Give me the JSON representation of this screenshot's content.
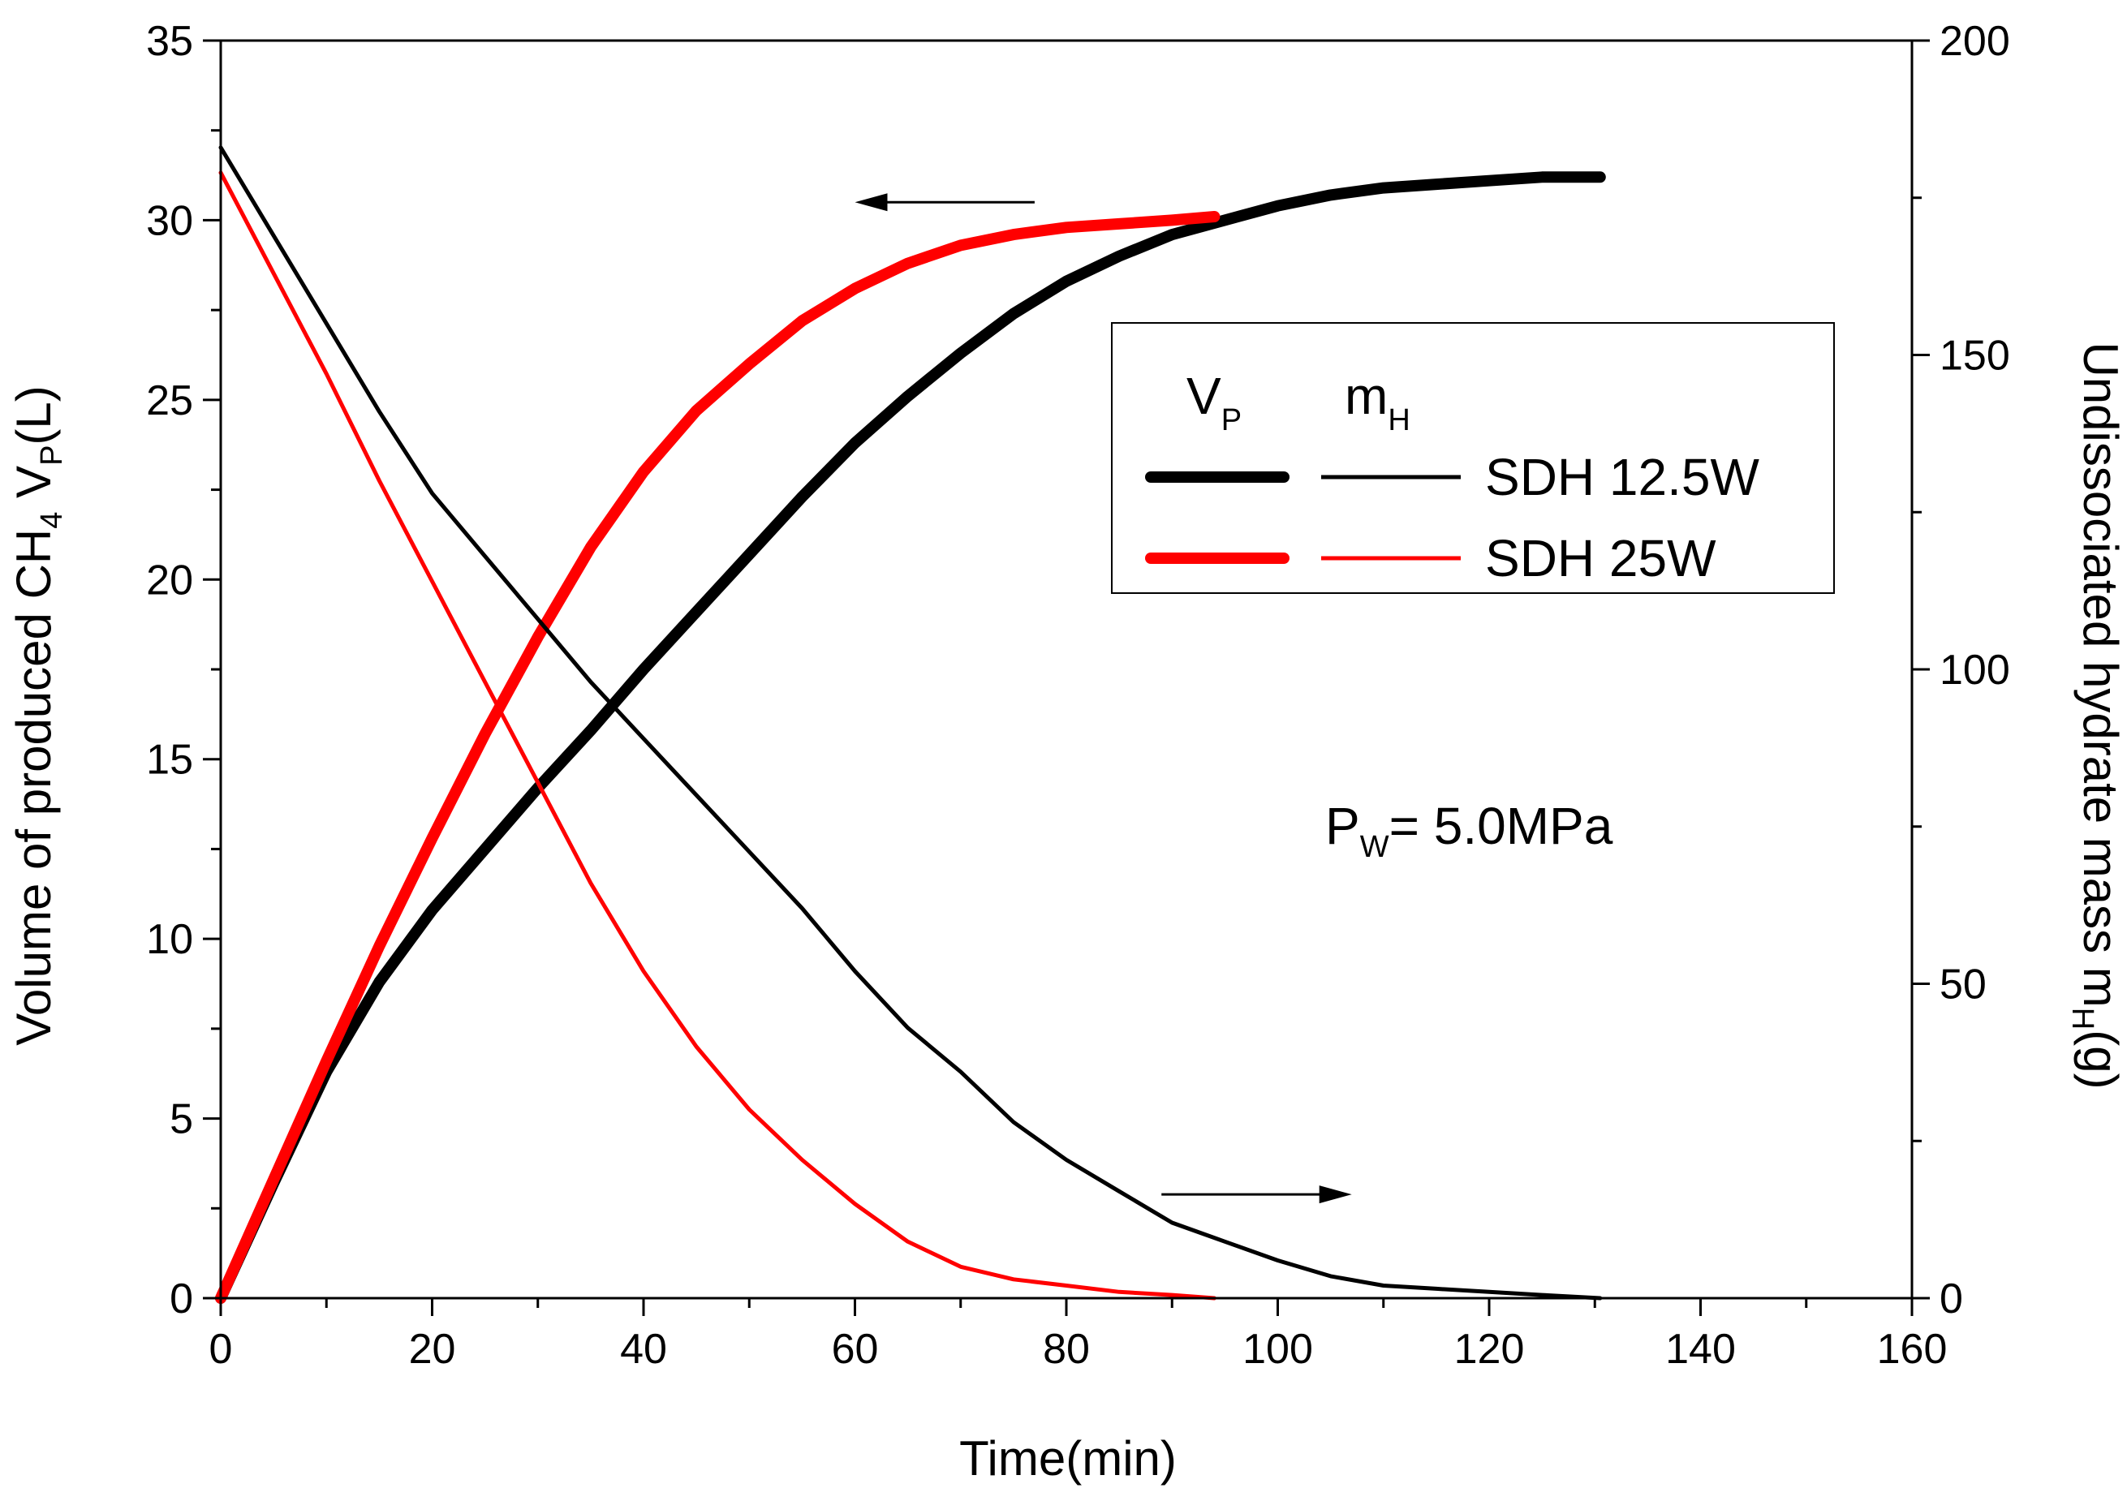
{
  "chart_data": {
    "type": "line",
    "title": "",
    "xlabel": "Time(min)",
    "ylabel_left": {
      "main": "Volume of produced CH",
      "sub1": "4",
      "mid": " V",
      "sub2": "P",
      "end": "(L)"
    },
    "ylabel_right": {
      "main": "Undissociated hydrate mass m",
      "sub": "H",
      "end": "(g)"
    },
    "xlim": [
      0,
      160
    ],
    "ylim_left": [
      0,
      35
    ],
    "ylim_right": [
      0,
      200
    ],
    "x_ticks": [
      "0",
      "20",
      "40",
      "60",
      "80",
      "100",
      "120",
      "140",
      "160"
    ],
    "y_left_ticks": [
      "0",
      "5",
      "10",
      "15",
      "20",
      "25",
      "30",
      "35"
    ],
    "y_right_ticks": [
      "0",
      "50",
      "100",
      "150",
      "200"
    ],
    "legend": {
      "header_vp": {
        "main": "V",
        "sub": "P"
      },
      "header_mh": {
        "main": "m",
        "sub": "H"
      },
      "entries": [
        {
          "label": "SDH 12.5W",
          "color": "#000000"
        },
        {
          "label": "SDH  25W",
          "color": "#ff0000"
        }
      ],
      "position": "upper-right"
    },
    "annotation": {
      "main": "P",
      "sub": "W",
      "rest": "= 5.0MPa"
    },
    "series": [
      {
        "name": "SDH 12.5W V_P",
        "axis": "left",
        "color": "#000000",
        "weight": "thick",
        "x": [
          0,
          5,
          10,
          15,
          20,
          25,
          30,
          35,
          40,
          45,
          50,
          55,
          60,
          65,
          70,
          75,
          80,
          85,
          90,
          95,
          100,
          105,
          110,
          115,
          120,
          125,
          130.5
        ],
        "y": [
          0,
          3.2,
          6.3,
          8.8,
          10.8,
          12.5,
          14.2,
          15.8,
          17.5,
          19.1,
          20.7,
          22.3,
          23.8,
          25.1,
          26.3,
          27.4,
          28.3,
          29.0,
          29.6,
          30.0,
          30.4,
          30.7,
          30.9,
          31.0,
          31.1,
          31.2,
          31.2
        ]
      },
      {
        "name": "SDH 25W V_P",
        "axis": "left",
        "color": "#ff0000",
        "weight": "thick",
        "x": [
          0,
          5,
          10,
          15,
          20,
          25,
          30,
          35,
          40,
          45,
          50,
          55,
          60,
          65,
          70,
          75,
          80,
          85,
          90,
          94
        ],
        "y": [
          0,
          3.3,
          6.6,
          9.8,
          12.8,
          15.7,
          18.4,
          20.9,
          23.0,
          24.7,
          26.0,
          27.2,
          28.1,
          28.8,
          29.3,
          29.6,
          29.8,
          29.9,
          30.0,
          30.1
        ]
      },
      {
        "name": "SDH 12.5W m_H",
        "axis": "right",
        "color": "#000000",
        "weight": "thin",
        "x": [
          0,
          5,
          10,
          15,
          20,
          25,
          30,
          35,
          40,
          45,
          50,
          55,
          60,
          65,
          70,
          75,
          80,
          85,
          90,
          95,
          100,
          105,
          110,
          115,
          120,
          125,
          130.5
        ],
        "y": [
          183,
          169,
          155,
          141,
          128,
          118,
          108,
          98,
          89,
          80,
          71,
          62,
          52,
          43,
          36,
          28,
          22,
          17,
          12,
          9,
          6,
          3.5,
          2,
          1.5,
          1,
          0.5,
          0
        ]
      },
      {
        "name": "SDH 25W m_H",
        "axis": "right",
        "color": "#ff0000",
        "weight": "thin",
        "x": [
          0,
          5,
          10,
          15,
          20,
          25,
          30,
          35,
          40,
          45,
          50,
          55,
          60,
          65,
          70,
          75,
          80,
          85,
          90,
          94
        ],
        "y": [
          179,
          163,
          147,
          130,
          114,
          98,
          82,
          66,
          52,
          40,
          30,
          22,
          15,
          9,
          5,
          3,
          2,
          1,
          0.5,
          0
        ]
      }
    ],
    "arrows": [
      {
        "direction": "left",
        "target_axis": "left",
        "x_from": 77,
        "x_to": 60,
        "y_left": 30.5
      },
      {
        "direction": "right",
        "target_axis": "right",
        "x_from": 89,
        "x_to": 107,
        "y_right": 16.5
      }
    ]
  }
}
